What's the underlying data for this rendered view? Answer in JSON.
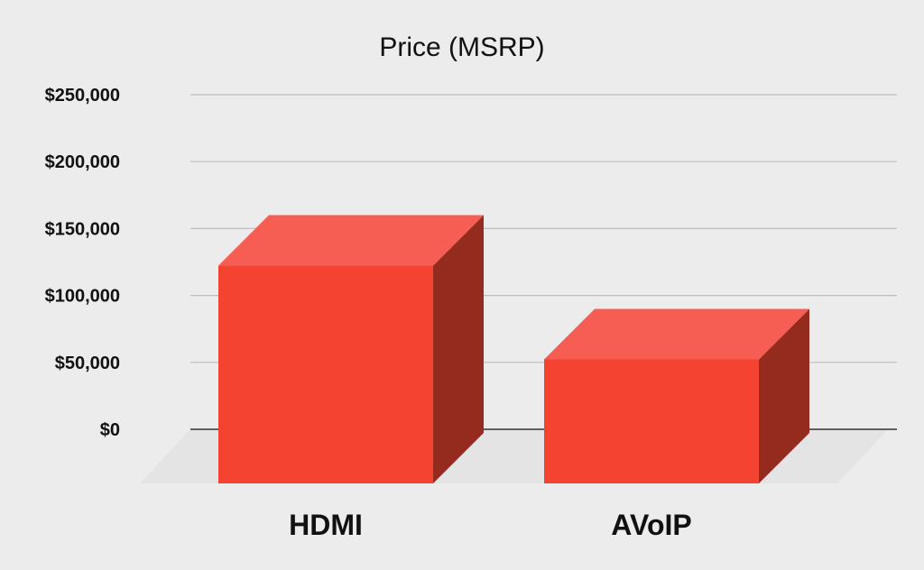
{
  "chart_data": {
    "type": "bar",
    "title": "Price (MSRP)",
    "categories": [
      "HDMI",
      "AVoIP"
    ],
    "values": [
      160000,
      90000
    ],
    "ylim": [
      0,
      250000
    ],
    "yticks": [
      0,
      50000,
      100000,
      150000,
      200000,
      250000
    ],
    "ytick_labels": [
      "$0",
      "$50,000",
      "$100,000",
      "$150,000",
      "$200,000",
      "$250,000"
    ],
    "xlabel": "",
    "ylabel": "",
    "grid": true,
    "legend": "none",
    "style": "3d",
    "colors": {
      "bar_front": "#f44331",
      "bar_top": "#f65e53",
      "bar_side": "#952a1f",
      "gridline": "#bdbdbd",
      "baseline": "#333333",
      "floor": "#e4e4e4",
      "background": "#ececec"
    }
  }
}
